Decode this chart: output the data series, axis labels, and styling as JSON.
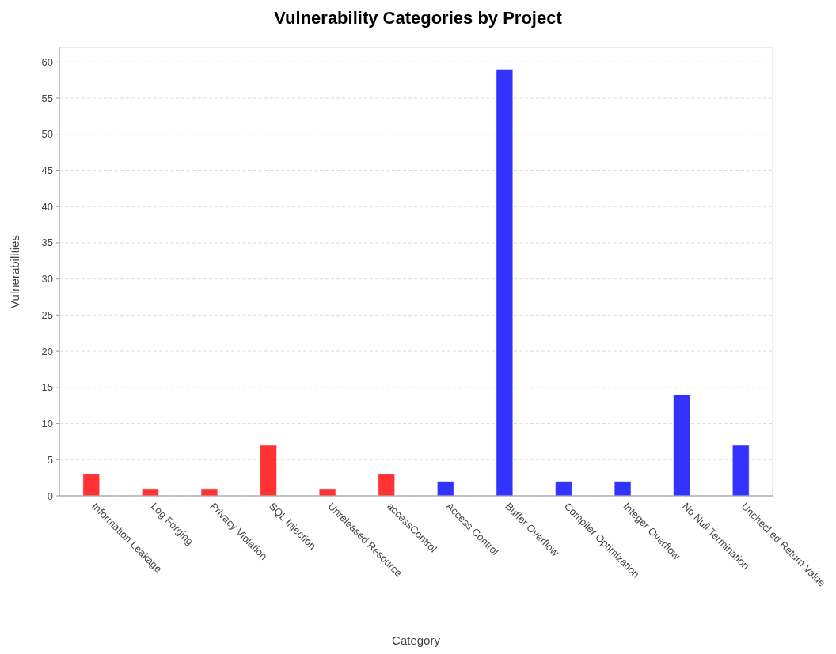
{
  "chart_data": {
    "type": "bar",
    "title": "Vulnerability Categories by Project",
    "xlabel": "Category",
    "ylabel": "Vulnerabilities",
    "categories": [
      "Information Leakage",
      "Log Forging",
      "Privacy Violation",
      "SQL Injection",
      "Unreleased Resource",
      "accessControl",
      "Access Control",
      "Buffer Overflow",
      "Compiler Optimization",
      "Integer Overflow",
      "No Null Termination",
      "Unchecked Return Value"
    ],
    "values": [
      3,
      1,
      1,
      7,
      1,
      3,
      2,
      59,
      2,
      2,
      14,
      7
    ],
    "colors": [
      "#ff3333",
      "#ff3333",
      "#ff3333",
      "#ff3333",
      "#ff3333",
      "#ff3333",
      "#3333ff",
      "#3333ff",
      "#3333ff",
      "#3333ff",
      "#3333ff",
      "#3333ff"
    ],
    "ylim": [
      0,
      62
    ],
    "yticks": [
      0,
      5,
      10,
      15,
      20,
      25,
      30,
      35,
      40,
      45,
      50,
      55,
      60
    ],
    "grid": "y"
  }
}
